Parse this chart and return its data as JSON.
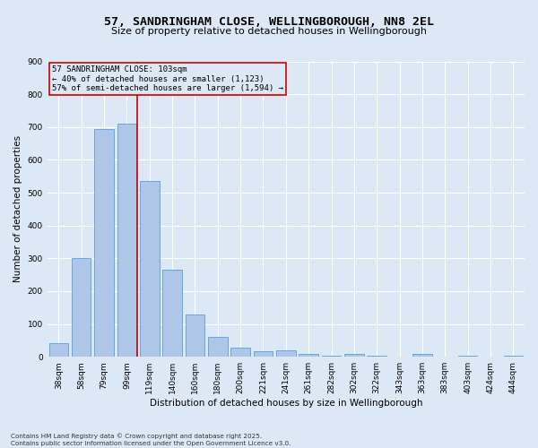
{
  "title": "57, SANDRINGHAM CLOSE, WELLINGBOROUGH, NN8 2EL",
  "subtitle": "Size of property relative to detached houses in Wellingborough",
  "xlabel": "Distribution of detached houses by size in Wellingborough",
  "ylabel": "Number of detached properties",
  "categories": [
    "38sqm",
    "58sqm",
    "79sqm",
    "99sqm",
    "119sqm",
    "140sqm",
    "160sqm",
    "180sqm",
    "200sqm",
    "221sqm",
    "241sqm",
    "261sqm",
    "282sqm",
    "302sqm",
    "322sqm",
    "343sqm",
    "363sqm",
    "383sqm",
    "403sqm",
    "424sqm",
    "444sqm"
  ],
  "values": [
    42,
    300,
    695,
    710,
    535,
    265,
    128,
    60,
    28,
    18,
    20,
    8,
    3,
    10,
    3,
    0,
    8,
    0,
    3,
    0,
    3
  ],
  "bar_color": "#aec6e8",
  "bar_edge_color": "#5a9fd4",
  "background_color": "#dce8f5",
  "grid_color": "#ffffff",
  "vline_color": "#cc0000",
  "annotation_text": "57 SANDRINGHAM CLOSE: 103sqm\n← 40% of detached houses are smaller (1,123)\n57% of semi-detached houses are larger (1,594) →",
  "annotation_box_color": "#cc0000",
  "footnote": "Contains HM Land Registry data © Crown copyright and database right 2025.\nContains public sector information licensed under the Open Government Licence v3.0.",
  "ylim": [
    0,
    900
  ],
  "yticks": [
    0,
    100,
    200,
    300,
    400,
    500,
    600,
    700,
    800,
    900
  ],
  "title_fontsize": 9.5,
  "subtitle_fontsize": 8,
  "axis_label_fontsize": 7.5,
  "tick_fontsize": 6.5,
  "annotation_fontsize": 6.5,
  "footnote_fontsize": 5.2
}
